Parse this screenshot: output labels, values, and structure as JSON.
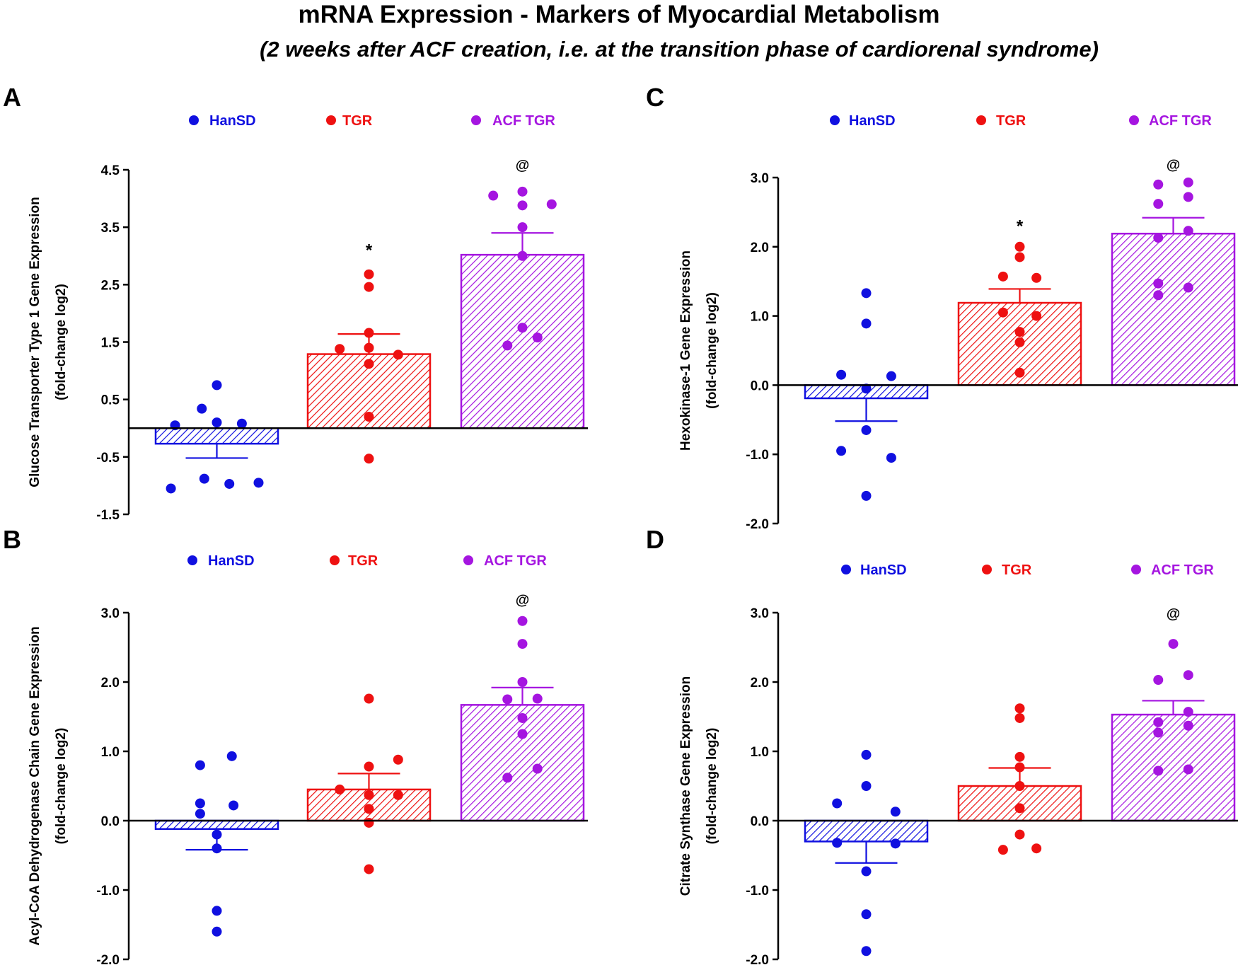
{
  "figure": {
    "title": "mRNA Expression - Markers of Myocardial Metabolism",
    "subtitle": "(2 weeks after ACF creation, i.e. at the transition phase of cardiorenal syndrome)"
  },
  "groups": [
    {
      "name": "HanSD",
      "color": "#1010e0"
    },
    {
      "name": "TGR",
      "color": "#ee1111"
    },
    {
      "name": "ACF TGR",
      "color": "#a515e0"
    }
  ],
  "chart_data": [
    {
      "panel": "A",
      "type": "bar",
      "ylabel_line1": "Glucose Transporter Type 1 Gene Expression",
      "ylabel_line2": "(fold-change log2)",
      "ylim": [
        -1.5,
        4.5
      ],
      "yticks": [
        "4.5",
        "3.5",
        "2.5",
        "1.5",
        "0.5",
        "-0.5",
        "-1.5"
      ],
      "legend": "top",
      "categories": [
        "HanSD",
        "TGR",
        "ACF TGR"
      ],
      "series": [
        {
          "name": "HanSD",
          "mean": -0.27,
          "sem": 0.25,
          "points": [
            [
              -0.5,
              0.05
            ],
            [
              -0.18,
              0.34
            ],
            [
              0.0,
              0.1
            ],
            [
              0.3,
              0.08
            ],
            [
              0.0,
              0.75
            ],
            [
              -0.15,
              -0.88
            ],
            [
              -0.55,
              -1.05
            ],
            [
              0.15,
              -0.97
            ],
            [
              0.5,
              -0.95
            ]
          ]
        },
        {
          "name": "TGR",
          "mean": 1.29,
          "sem": 0.35,
          "points": [
            [
              0.0,
              2.68
            ],
            [
              0.0,
              2.46
            ],
            [
              0.0,
              1.66
            ],
            [
              -0.35,
              1.38
            ],
            [
              0.0,
              1.4
            ],
            [
              0.35,
              1.28
            ],
            [
              0.0,
              1.12
            ],
            [
              0.0,
              0.2
            ],
            [
              0.0,
              -0.53
            ]
          ]
        },
        {
          "name": "ACF TGR",
          "mean": 3.02,
          "sem": 0.38,
          "points": [
            [
              -0.35,
              4.05
            ],
            [
              0.0,
              4.12
            ],
            [
              0.35,
              3.9
            ],
            [
              0.0,
              3.88
            ],
            [
              0.0,
              3.5
            ],
            [
              0.0,
              3.0
            ],
            [
              0.0,
              1.75
            ],
            [
              0.18,
              1.58
            ],
            [
              -0.18,
              1.44
            ]
          ]
        }
      ],
      "annotations": [
        {
          "group": "TGR",
          "symbol": "*",
          "y": 3.1
        },
        {
          "group": "ACF TGR",
          "symbol": "@",
          "y": 4.6
        }
      ]
    },
    {
      "panel": "B",
      "type": "bar",
      "ylabel_line1": "Acyl-CoA Dehydrogenase Chain Gene Expression",
      "ylabel_line2": "(fold-change log2)",
      "ylim": [
        -2.0,
        3.0
      ],
      "yticks": [
        "3.0",
        "2.0",
        "1.0",
        "0.0",
        "-1.0",
        "-2.0"
      ],
      "legend": "top",
      "categories": [
        "HanSD",
        "TGR",
        "ACF TGR"
      ],
      "series": [
        {
          "name": "HanSD",
          "mean": -0.12,
          "sem": 0.3,
          "points": [
            [
              -0.2,
              0.8
            ],
            [
              0.18,
              0.93
            ],
            [
              -0.2,
              0.25
            ],
            [
              0.2,
              0.22
            ],
            [
              -0.2,
              0.1
            ],
            [
              0.0,
              -0.2
            ],
            [
              0.0,
              -0.4
            ],
            [
              0.0,
              -1.3
            ],
            [
              0.0,
              -1.6
            ]
          ]
        },
        {
          "name": "TGR",
          "mean": 0.45,
          "sem": 0.23,
          "points": [
            [
              0.0,
              1.76
            ],
            [
              0.35,
              0.88
            ],
            [
              0.0,
              0.78
            ],
            [
              -0.35,
              0.45
            ],
            [
              0.35,
              0.37
            ],
            [
              0.0,
              0.37
            ],
            [
              0.0,
              0.17
            ],
            [
              0.0,
              -0.03
            ],
            [
              0.0,
              -0.7
            ]
          ]
        },
        {
          "name": "ACF TGR",
          "mean": 1.67,
          "sem": 0.25,
          "points": [
            [
              0.0,
              2.88
            ],
            [
              0.0,
              2.55
            ],
            [
              0.0,
              2.0
            ],
            [
              -0.18,
              1.75
            ],
            [
              0.18,
              1.76
            ],
            [
              0.0,
              1.48
            ],
            [
              0.0,
              1.25
            ],
            [
              0.18,
              0.75
            ],
            [
              -0.18,
              0.62
            ]
          ]
        }
      ],
      "annotations": [
        {
          "group": "ACF TGR",
          "symbol": "@",
          "y": 3.2
        }
      ]
    },
    {
      "panel": "C",
      "type": "bar",
      "ylabel_line1": "Hexokinase-1 Gene Expression",
      "ylabel_line2": "(fold-change log2)",
      "ylim": [
        -2.0,
        3.0
      ],
      "yticks": [
        "3.0",
        "2.0",
        "1.0",
        "0.0",
        "-1.0",
        "-2.0"
      ],
      "legend": "top",
      "categories": [
        "HanSD",
        "TGR",
        "ACF TGR"
      ],
      "series": [
        {
          "name": "HanSD",
          "mean": -0.19,
          "sem": 0.33,
          "points": [
            [
              0.0,
              1.33
            ],
            [
              0.0,
              0.89
            ],
            [
              -0.3,
              0.15
            ],
            [
              0.3,
              0.13
            ],
            [
              0.0,
              -0.05
            ],
            [
              0.0,
              -0.65
            ],
            [
              -0.3,
              -0.95
            ],
            [
              0.3,
              -1.05
            ],
            [
              0.0,
              -1.6
            ]
          ]
        },
        {
          "name": "TGR",
          "mean": 1.19,
          "sem": 0.2,
          "points": [
            [
              0.0,
              2.0
            ],
            [
              0.0,
              1.85
            ],
            [
              -0.2,
              1.57
            ],
            [
              0.2,
              1.55
            ],
            [
              -0.2,
              1.05
            ],
            [
              0.2,
              1.0
            ],
            [
              0.0,
              0.77
            ],
            [
              0.0,
              0.62
            ],
            [
              0.0,
              0.18
            ]
          ]
        },
        {
          "name": "ACF TGR",
          "mean": 2.19,
          "sem": 0.23,
          "points": [
            [
              -0.18,
              2.9
            ],
            [
              0.18,
              2.93
            ],
            [
              -0.18,
              2.62
            ],
            [
              0.18,
              2.72
            ],
            [
              0.18,
              2.23
            ],
            [
              -0.18,
              2.13
            ],
            [
              -0.18,
              1.47
            ],
            [
              0.18,
              1.41
            ],
            [
              -0.18,
              1.3
            ]
          ]
        }
      ],
      "annotations": [
        {
          "group": "TGR",
          "symbol": "*",
          "y": 2.3
        },
        {
          "group": "ACF TGR",
          "symbol": "@",
          "y": 3.2
        }
      ]
    },
    {
      "panel": "D",
      "type": "bar",
      "ylabel_line1": "Citrate Synthase Gene Expression",
      "ylabel_line2": "(fold-change log2)",
      "ylim": [
        -2.0,
        3.0
      ],
      "yticks": [
        "3.0",
        "2.0",
        "1.0",
        "0.0",
        "-1.0",
        "-2.0"
      ],
      "legend": "top",
      "categories": [
        "HanSD",
        "TGR",
        "ACF TGR"
      ],
      "series": [
        {
          "name": "HanSD",
          "mean": -0.3,
          "sem": 0.31,
          "points": [
            [
              0.0,
              0.95
            ],
            [
              0.0,
              0.5
            ],
            [
              -0.35,
              0.25
            ],
            [
              0.35,
              0.13
            ],
            [
              -0.35,
              -0.32
            ],
            [
              0.35,
              -0.33
            ],
            [
              0.0,
              -0.73
            ],
            [
              0.0,
              -1.35
            ],
            [
              0.0,
              -1.88
            ]
          ]
        },
        {
          "name": "TGR",
          "mean": 0.5,
          "sem": 0.26,
          "points": [
            [
              0.0,
              1.62
            ],
            [
              0.0,
              1.48
            ],
            [
              0.0,
              0.92
            ],
            [
              0.0,
              0.77
            ],
            [
              0.0,
              0.5
            ],
            [
              0.0,
              0.18
            ],
            [
              0.0,
              -0.2
            ],
            [
              -0.2,
              -0.42
            ],
            [
              0.2,
              -0.4
            ]
          ]
        },
        {
          "name": "ACF TGR",
          "mean": 1.53,
          "sem": 0.2,
          "points": [
            [
              0.0,
              2.55
            ],
            [
              -0.18,
              2.03
            ],
            [
              0.18,
              2.1
            ],
            [
              0.18,
              1.57
            ],
            [
              -0.18,
              1.42
            ],
            [
              0.18,
              1.37
            ],
            [
              -0.18,
              1.27
            ],
            [
              -0.18,
              0.72
            ],
            [
              0.18,
              0.74
            ]
          ]
        }
      ],
      "annotations": [
        {
          "group": "ACF TGR",
          "symbol": "@",
          "y": 3.0
        }
      ]
    }
  ]
}
